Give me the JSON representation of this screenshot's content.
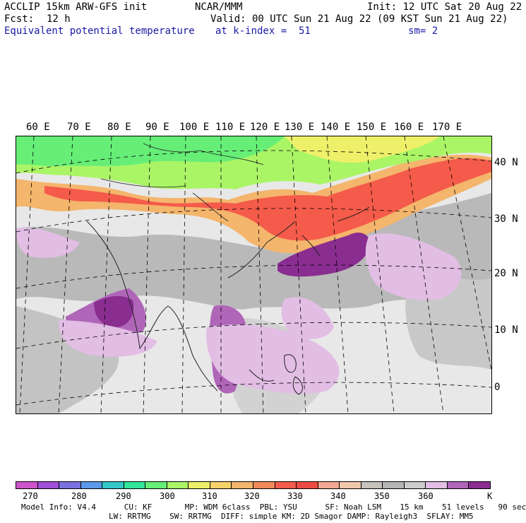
{
  "header": {
    "model": "ACCLIP 15km ARW-GFS init",
    "org": "NCAR/MMM",
    "init": "Init: 12 UTC Sat 20 Aug 22",
    "fcst_label": "Fcst:",
    "fcst_value": "12 h",
    "valid": "Valid: 00 UTC Sun 21 Aug 22 (09 KST Sun 21 Aug 22)",
    "variable": "Equivalent potential temperature",
    "level": "at k-index =  51",
    "smoothing": "sm= 2"
  },
  "lon_labels": [
    "60 E",
    "70 E",
    "80 E",
    "90 E",
    "100 E",
    "110 E",
    "120 E",
    "130 E",
    "140 E",
    "150 E",
    "160 E",
    "170 E"
  ],
  "lat_labels": [
    "40 N",
    "30 N",
    "20 N",
    "10 N",
    "0"
  ],
  "colorbar": {
    "colors": [
      "#cc55cc",
      "#a050d8",
      "#7a70e0",
      "#5a9ae8",
      "#33c7c7",
      "#33e49a",
      "#66ee77",
      "#aaf566",
      "#eef06a",
      "#f7d26a",
      "#f4b56c",
      "#f58a5a",
      "#f45b4b",
      "#ee4a44",
      "#f2a890",
      "#f2c8ab",
      "#c8c2bd",
      "#b4b4b4",
      "#cccccc",
      "#e2bde4",
      "#b066b8",
      "#8a2d90"
    ],
    "ticks": [
      "270",
      "280",
      "290",
      "300",
      "310",
      "320",
      "330",
      "340",
      "350",
      "360"
    ],
    "unit": "K"
  },
  "footer": {
    "line1": "Model Info: V4.4      CU: KF       MP: WDM 6class  PBL: YSU      SF: Noah LSM    15 km    51 levels   90 sec",
    "line2": "LW: RRTMG    SW: RRTMG  DIFF: simple KM: 2D Smagor DAMP: Rayleigh3  SFLAY: MM5"
  }
}
